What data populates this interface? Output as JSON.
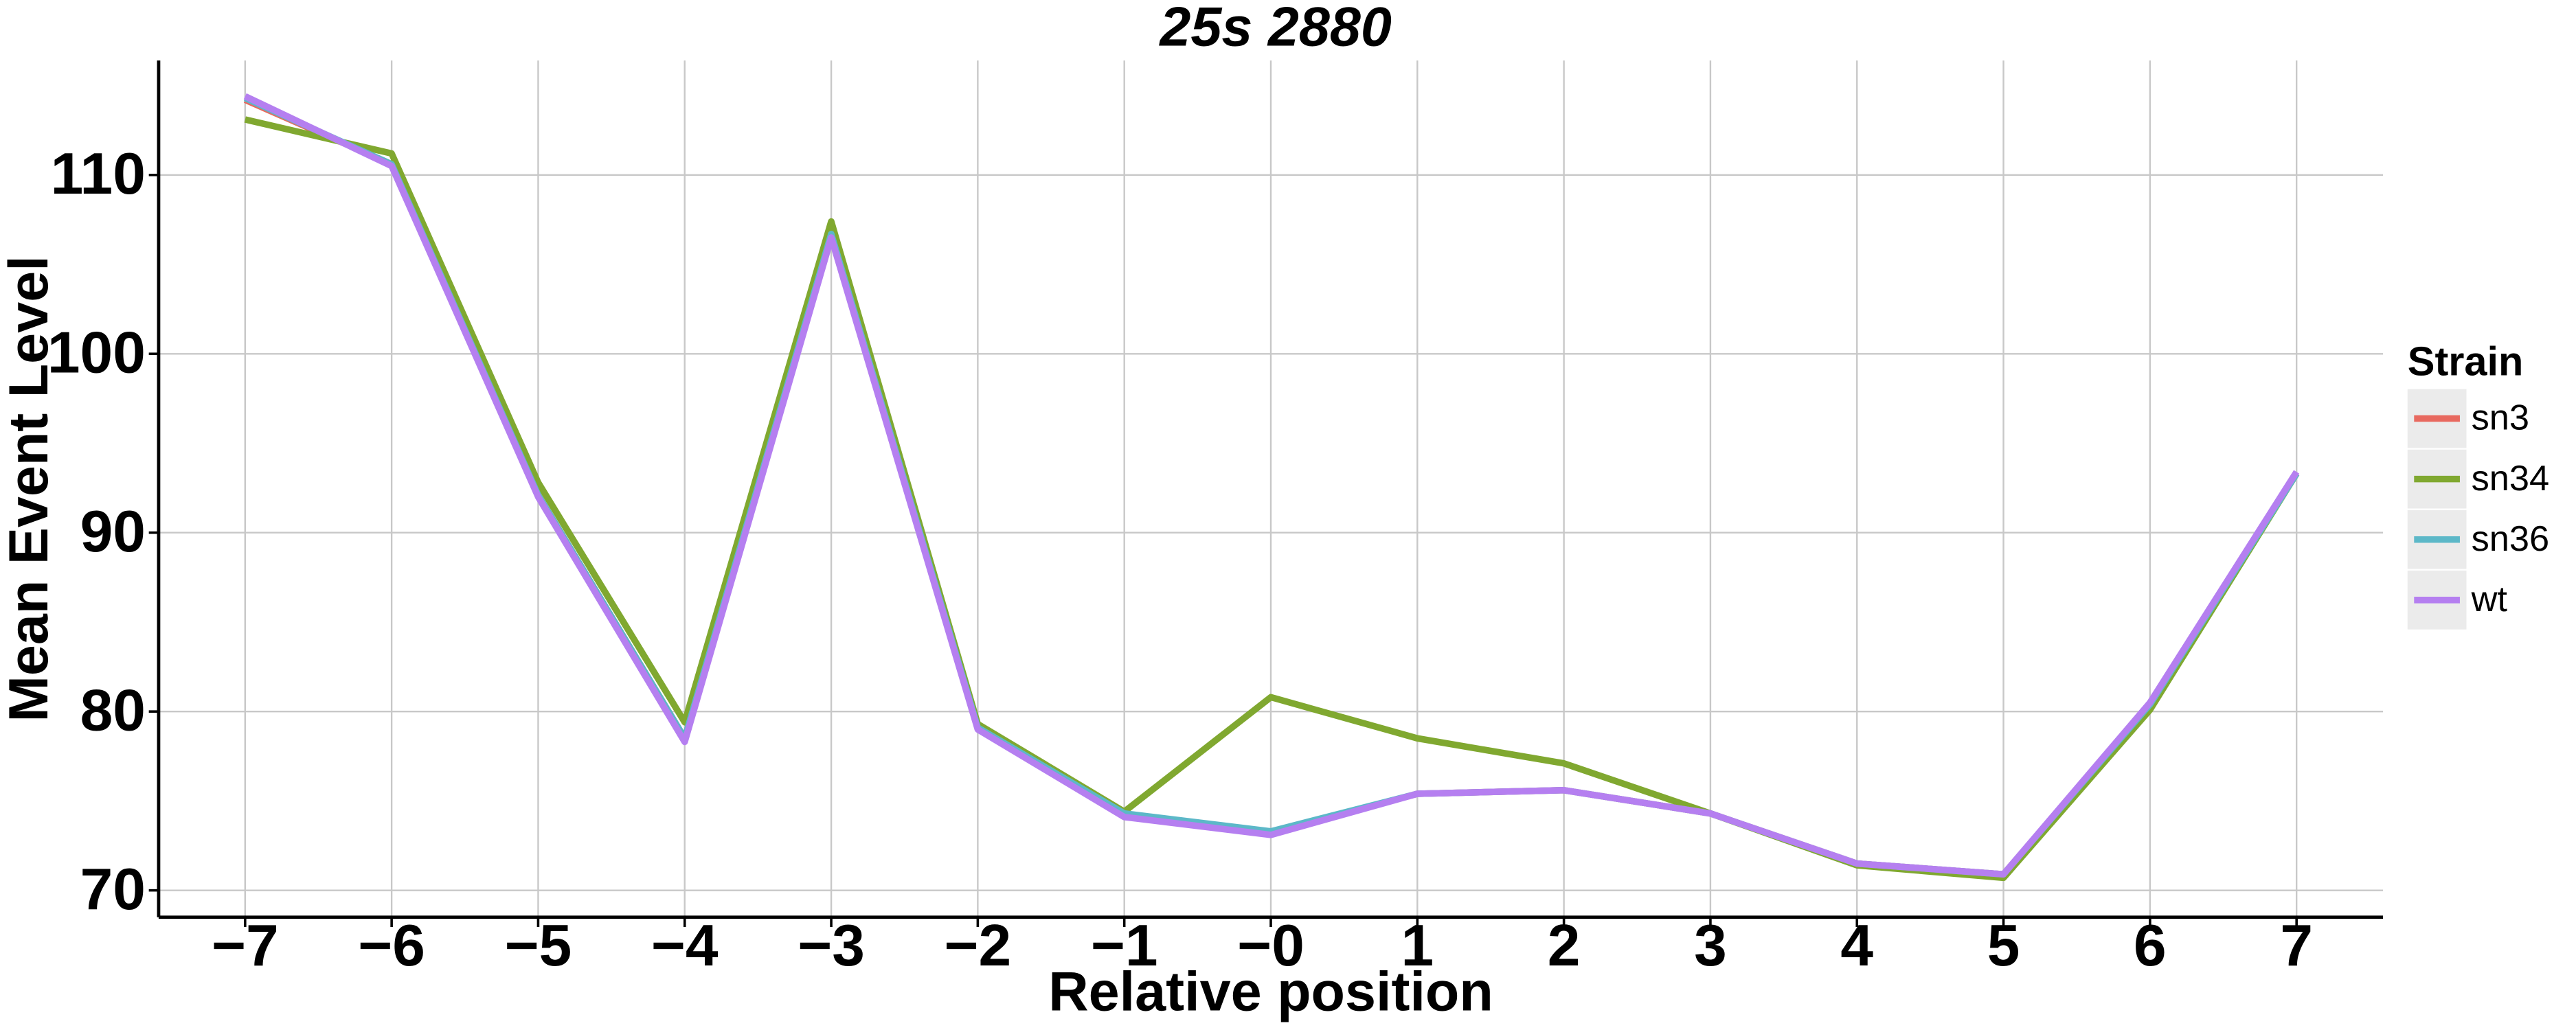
{
  "chart_data": {
    "type": "line",
    "title": "25s 2880",
    "x_label": "Relative position",
    "y_label": "Mean Event Level",
    "categories": [
      "−7",
      "−6",
      "−5",
      "−4",
      "−3",
      "−2",
      "−1",
      "−0",
      "1",
      "2",
      "3",
      "4",
      "5",
      "6",
      "7"
    ],
    "ylim": [
      68.5,
      116.4
    ],
    "yticks": [
      70,
      80,
      90,
      100,
      110
    ],
    "grid": true,
    "legend_title": "Strain",
    "legend_position": "right",
    "series": [
      {
        "name": "sn3",
        "color": "#e8695f",
        "values": [
          114.2,
          110.6,
          92.1,
          78.5,
          106.6,
          79.1,
          74.2,
          73.2,
          75.4,
          75.6,
          74.3,
          71.5,
          70.9,
          80.4,
          93.3
        ]
      },
      {
        "name": "sn34",
        "color": "#80a830",
        "values": [
          113.1,
          111.2,
          92.8,
          79.4,
          107.4,
          79.3,
          74.4,
          80.8,
          78.5,
          77.1,
          74.3,
          71.4,
          70.7,
          80.1,
          93.3
        ]
      },
      {
        "name": "sn36",
        "color": "#5cb8c8",
        "values": [
          114.3,
          110.6,
          92.1,
          78.5,
          106.7,
          79.1,
          74.3,
          73.3,
          75.4,
          75.6,
          74.3,
          71.5,
          70.9,
          80.4,
          93.3
        ]
      },
      {
        "name": "wt",
        "color": "#b57ff0",
        "values": [
          114.4,
          110.5,
          92.0,
          78.3,
          106.5,
          79.0,
          74.1,
          73.1,
          75.4,
          75.6,
          74.3,
          71.5,
          70.9,
          80.5,
          93.4
        ]
      }
    ]
  }
}
